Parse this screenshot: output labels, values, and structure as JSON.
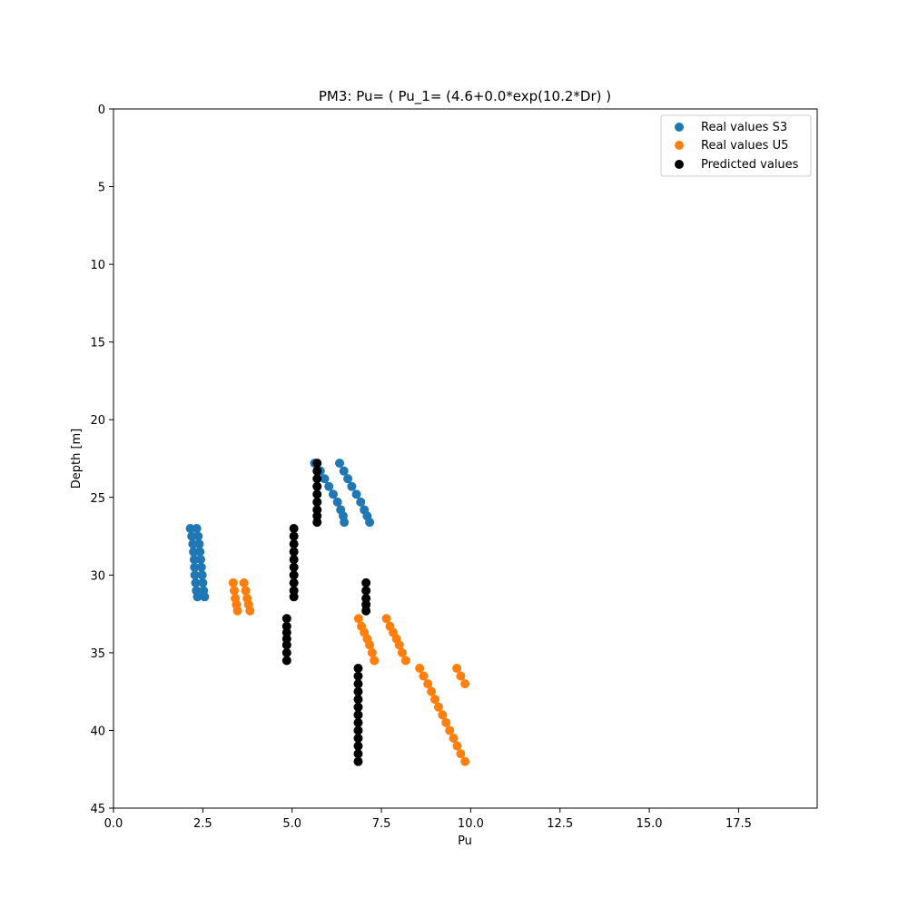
{
  "chart_data": {
    "type": "scatter",
    "title": "PM3: Pu= ( Pu_1= (4.6+0.0*exp(10.2*Dr) )",
    "xlabel": "Pu",
    "ylabel": "Depth [m]",
    "xlim": [
      0,
      19.7
    ],
    "ylim": [
      45,
      0
    ],
    "y_inverted": true,
    "xticks": [
      0.0,
      2.5,
      5.0,
      7.5,
      10.0,
      12.5,
      15.0,
      17.5
    ],
    "xtick_labels": [
      "0.0",
      "2.5",
      "5.0",
      "7.5",
      "10.0",
      "12.5",
      "15.0",
      "17.5"
    ],
    "yticks": [
      0,
      5,
      10,
      15,
      20,
      25,
      30,
      35,
      40,
      45
    ],
    "ytick_labels": [
      "0",
      "5",
      "10",
      "15",
      "20",
      "25",
      "30",
      "35",
      "40",
      "45"
    ],
    "grid": false,
    "legend_position": "top-right",
    "series": [
      {
        "name": "Real values S3",
        "color": "#1f77b4",
        "points": [
          [
            5.63,
            22.8
          ],
          [
            5.79,
            23.3
          ],
          [
            5.91,
            23.8
          ],
          [
            6.03,
            24.3
          ],
          [
            6.15,
            24.8
          ],
          [
            6.27,
            25.3
          ],
          [
            6.36,
            25.8
          ],
          [
            6.43,
            26.2
          ],
          [
            6.46,
            26.6
          ],
          [
            6.33,
            22.8
          ],
          [
            6.45,
            23.3
          ],
          [
            6.56,
            23.8
          ],
          [
            6.67,
            24.3
          ],
          [
            6.8,
            24.8
          ],
          [
            6.92,
            25.3
          ],
          [
            7.02,
            25.8
          ],
          [
            7.1,
            26.2
          ],
          [
            7.17,
            26.6
          ],
          [
            2.15,
            27.0
          ],
          [
            2.19,
            27.5
          ],
          [
            2.22,
            28.0
          ],
          [
            2.24,
            28.5
          ],
          [
            2.26,
            29.0
          ],
          [
            2.27,
            29.5
          ],
          [
            2.28,
            30.0
          ],
          [
            2.3,
            30.5
          ],
          [
            2.32,
            31.0
          ],
          [
            2.35,
            31.4
          ],
          [
            2.33,
            27.0
          ],
          [
            2.37,
            27.5
          ],
          [
            2.4,
            28.0
          ],
          [
            2.42,
            28.5
          ],
          [
            2.44,
            29.0
          ],
          [
            2.46,
            29.5
          ],
          [
            2.48,
            30.0
          ],
          [
            2.5,
            30.5
          ],
          [
            2.52,
            31.0
          ],
          [
            2.55,
            31.4
          ]
        ]
      },
      {
        "name": "Real values U5",
        "color": "#ff7f0e",
        "points": [
          [
            3.35,
            30.5
          ],
          [
            3.38,
            31.0
          ],
          [
            3.41,
            31.5
          ],
          [
            3.44,
            31.9
          ],
          [
            3.47,
            32.3
          ],
          [
            3.65,
            30.5
          ],
          [
            3.7,
            31.0
          ],
          [
            3.74,
            31.5
          ],
          [
            3.78,
            31.9
          ],
          [
            3.82,
            32.3
          ],
          [
            6.86,
            32.8
          ],
          [
            6.94,
            33.3
          ],
          [
            7.02,
            33.7
          ],
          [
            7.1,
            34.1
          ],
          [
            7.17,
            34.5
          ],
          [
            7.24,
            35.0
          ],
          [
            7.3,
            35.5
          ],
          [
            7.64,
            32.8
          ],
          [
            7.74,
            33.3
          ],
          [
            7.83,
            33.7
          ],
          [
            7.92,
            34.1
          ],
          [
            8.0,
            34.5
          ],
          [
            8.08,
            35.0
          ],
          [
            8.18,
            35.5
          ],
          [
            8.57,
            36.0
          ],
          [
            8.68,
            36.5
          ],
          [
            8.8,
            37.0
          ],
          [
            8.9,
            37.5
          ],
          [
            9.0,
            38.0
          ],
          [
            9.1,
            38.5
          ],
          [
            9.21,
            39.0
          ],
          [
            9.31,
            39.5
          ],
          [
            9.41,
            40.0
          ],
          [
            9.52,
            40.5
          ],
          [
            9.62,
            41.0
          ],
          [
            9.72,
            41.5
          ],
          [
            9.84,
            42.0
          ],
          [
            9.61,
            36.0
          ],
          [
            9.72,
            36.5
          ],
          [
            9.84,
            37.0
          ]
        ]
      },
      {
        "name": "Predicted values",
        "color": "#000000",
        "points": [
          [
            5.7,
            22.8
          ],
          [
            5.7,
            23.3
          ],
          [
            5.7,
            23.8
          ],
          [
            5.7,
            24.3
          ],
          [
            5.7,
            24.8
          ],
          [
            5.7,
            25.3
          ],
          [
            5.7,
            25.8
          ],
          [
            5.7,
            26.2
          ],
          [
            5.7,
            26.6
          ],
          [
            5.05,
            27.0
          ],
          [
            5.05,
            27.5
          ],
          [
            5.05,
            28.0
          ],
          [
            5.05,
            28.5
          ],
          [
            5.05,
            29.0
          ],
          [
            5.05,
            29.5
          ],
          [
            5.05,
            30.0
          ],
          [
            5.05,
            30.5
          ],
          [
            5.05,
            31.0
          ],
          [
            5.05,
            31.4
          ],
          [
            7.07,
            30.5
          ],
          [
            7.07,
            31.0
          ],
          [
            7.07,
            31.5
          ],
          [
            7.07,
            31.9
          ],
          [
            7.07,
            32.3
          ],
          [
            4.85,
            32.8
          ],
          [
            4.85,
            33.3
          ],
          [
            4.85,
            33.7
          ],
          [
            4.85,
            34.1
          ],
          [
            4.85,
            34.5
          ],
          [
            4.85,
            35.0
          ],
          [
            4.85,
            35.5
          ],
          [
            6.85,
            36.0
          ],
          [
            6.85,
            36.5
          ],
          [
            6.85,
            37.0
          ],
          [
            6.85,
            37.5
          ],
          [
            6.85,
            38.0
          ],
          [
            6.85,
            38.5
          ],
          [
            6.85,
            39.0
          ],
          [
            6.85,
            39.5
          ],
          [
            6.85,
            40.0
          ],
          [
            6.85,
            40.5
          ],
          [
            6.85,
            41.0
          ],
          [
            6.85,
            41.5
          ],
          [
            6.85,
            42.0
          ]
        ]
      }
    ]
  }
}
